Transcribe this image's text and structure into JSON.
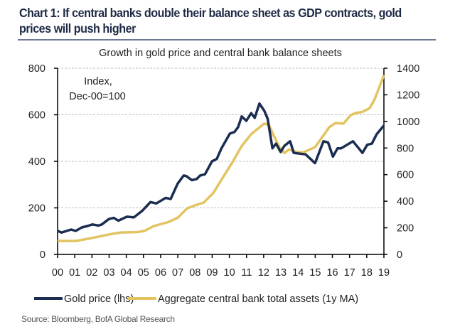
{
  "header": {
    "title": "Chart 1: If central banks double their balance sheet as GDP contracts, gold prices will push higher"
  },
  "footer": {
    "source": "Source: Bloomberg, BofA Global Research"
  },
  "chart_data": {
    "type": "line",
    "title": "Growth in gold price and central bank balance sheets",
    "annotation": "Index, Dec-00=100",
    "x_tick_labels": [
      "00",
      "01",
      "02",
      "03",
      "04",
      "05",
      "06",
      "07",
      "08",
      "09",
      "10",
      "11",
      "12",
      "13",
      "14",
      "15",
      "16",
      "17",
      "18",
      "19"
    ],
    "xlim": [
      2000,
      2019
    ],
    "y_left": {
      "ylim": [
        0,
        800
      ],
      "ticks": [
        "0",
        "200",
        "400",
        "600",
        "800"
      ]
    },
    "y_right": {
      "ylim": [
        0,
        1400
      ],
      "ticks": [
        "0",
        "200",
        "400",
        "600",
        "800",
        "1000",
        "1200",
        "1400"
      ]
    },
    "grid": "horizontal dashed",
    "legend_placement": "bottom",
    "series": [
      {
        "name": "Gold price (lhs)",
        "axis": "left",
        "color": "#1b2d50",
        "x": [
          2000,
          2000.23,
          2000.79,
          2001.06,
          2001.41,
          2001.75,
          2002.03,
          2002.37,
          2002.58,
          2002.99,
          2003.27,
          2003.54,
          2004.03,
          2004.44,
          2004.92,
          2005.41,
          2005.75,
          2006.3,
          2006.58,
          2006.99,
          2007.34,
          2007.48,
          2007.82,
          2008.1,
          2008.3,
          2008.58,
          2008.99,
          2009.27,
          2009.54,
          2010.03,
          2010.3,
          2010.51,
          2010.72,
          2010.99,
          2011.27,
          2011.48,
          2011.75,
          2012.03,
          2012.23,
          2012.51,
          2012.72,
          2012.99,
          2013.2,
          2013.54,
          2013.75,
          2014.44,
          2014.99,
          2015.48,
          2015.75,
          2016.03,
          2016.3,
          2016.51,
          2017.2,
          2017.75,
          2018.03,
          2018.3,
          2018.58,
          2019
        ],
        "y": [
          101,
          94,
          107,
          101,
          116,
          122,
          129,
          124,
          129,
          152,
          157,
          145,
          162,
          159,
          187,
          225,
          219,
          243,
          238,
          304,
          339,
          337,
          319,
          324,
          339,
          344,
          400,
          410,
          456,
          519,
          526,
          547,
          593,
          574,
          607,
          587,
          648,
          618,
          583,
          456,
          476,
          440,
          466,
          486,
          436,
          430,
          392,
          486,
          481,
          420,
          456,
          456,
          486,
          436,
          471,
          476,
          517,
          554
        ]
      },
      {
        "name": "Aggregate central bank total assets (1y MA)",
        "axis": "right",
        "color": "#e2c462",
        "x": [
          2000,
          2001.06,
          2002.03,
          2002.99,
          2003.68,
          2004.65,
          2005.06,
          2005.61,
          2006.44,
          2006.99,
          2007.54,
          2007.96,
          2008.51,
          2009.06,
          2009.61,
          2010.17,
          2010.72,
          2011.27,
          2011.68,
          2012.03,
          2012.3,
          2012.58,
          2012.92,
          2013.2,
          2013.48,
          2013.89,
          2014.3,
          2014.99,
          2015.48,
          2015.82,
          2016.17,
          2016.65,
          2017.06,
          2017.34,
          2017.75,
          2018.17,
          2018.44,
          2019
        ],
        "y": [
          101,
          101,
          124,
          150,
          165,
          168,
          177,
          213,
          243,
          275,
          346,
          367,
          390,
          461,
          576,
          691,
          815,
          904,
          948,
          984,
          975,
          895,
          806,
          762,
          789,
          771,
          767,
          806,
          895,
          957,
          987,
          984,
          1046,
          1063,
          1072,
          1099,
          1161,
          1347
        ]
      }
    ]
  }
}
